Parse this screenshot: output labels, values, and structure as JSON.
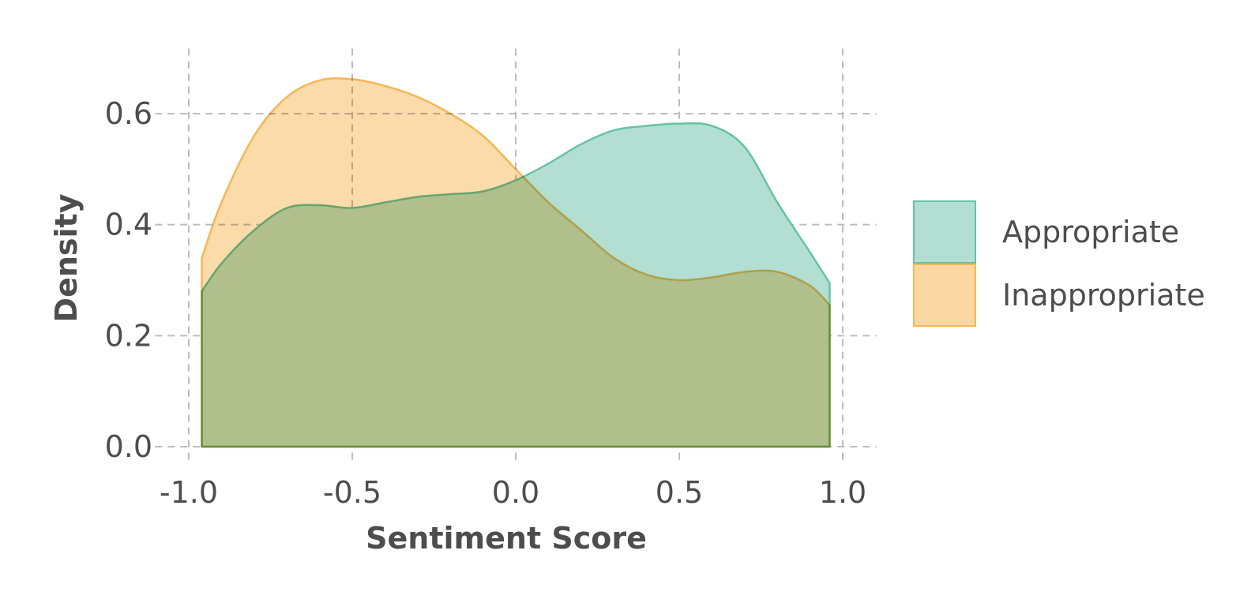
{
  "chart_data": {
    "type": "area",
    "xlabel": "Sentiment Score",
    "ylabel": "Density",
    "xlim": [
      -1.05,
      1.05
    ],
    "ylim": [
      0,
      0.72
    ],
    "xticks": [
      -1.0,
      -0.5,
      0.0,
      0.5,
      1.0
    ],
    "xtick_labels": [
      "-1.0",
      "-0.5",
      "0.0",
      "0.5",
      "1.0"
    ],
    "yticks": [
      0.0,
      0.2,
      0.4,
      0.6
    ],
    "ytick_labels": [
      "0.0",
      "0.2",
      "0.4",
      "0.6"
    ],
    "grid": true,
    "legend_position": "right",
    "series": [
      {
        "name": "Appropriate",
        "color": "#66c2a5",
        "fill": "#b3dfd2",
        "x": [
          -0.96,
          -0.9,
          -0.8,
          -0.7,
          -0.6,
          -0.5,
          -0.4,
          -0.3,
          -0.2,
          -0.1,
          0.0,
          0.1,
          0.2,
          0.3,
          0.4,
          0.5,
          0.6,
          0.7,
          0.8,
          0.9,
          0.96
        ],
        "values": [
          0.28,
          0.33,
          0.39,
          0.43,
          0.435,
          0.43,
          0.44,
          0.45,
          0.455,
          0.46,
          0.48,
          0.51,
          0.545,
          0.57,
          0.578,
          0.582,
          0.578,
          0.54,
          0.44,
          0.35,
          0.295
        ]
      },
      {
        "name": "Inappropriate",
        "color": "#f6b756",
        "fill": "#fbd8a3",
        "x": [
          -0.96,
          -0.9,
          -0.8,
          -0.7,
          -0.6,
          -0.5,
          -0.4,
          -0.3,
          -0.2,
          -0.1,
          0.0,
          0.1,
          0.2,
          0.3,
          0.4,
          0.5,
          0.6,
          0.7,
          0.8,
          0.9,
          0.96
        ],
        "values": [
          0.34,
          0.44,
          0.56,
          0.63,
          0.66,
          0.662,
          0.65,
          0.63,
          0.6,
          0.56,
          0.5,
          0.44,
          0.39,
          0.34,
          0.31,
          0.3,
          0.305,
          0.315,
          0.315,
          0.29,
          0.255
        ]
      }
    ]
  }
}
